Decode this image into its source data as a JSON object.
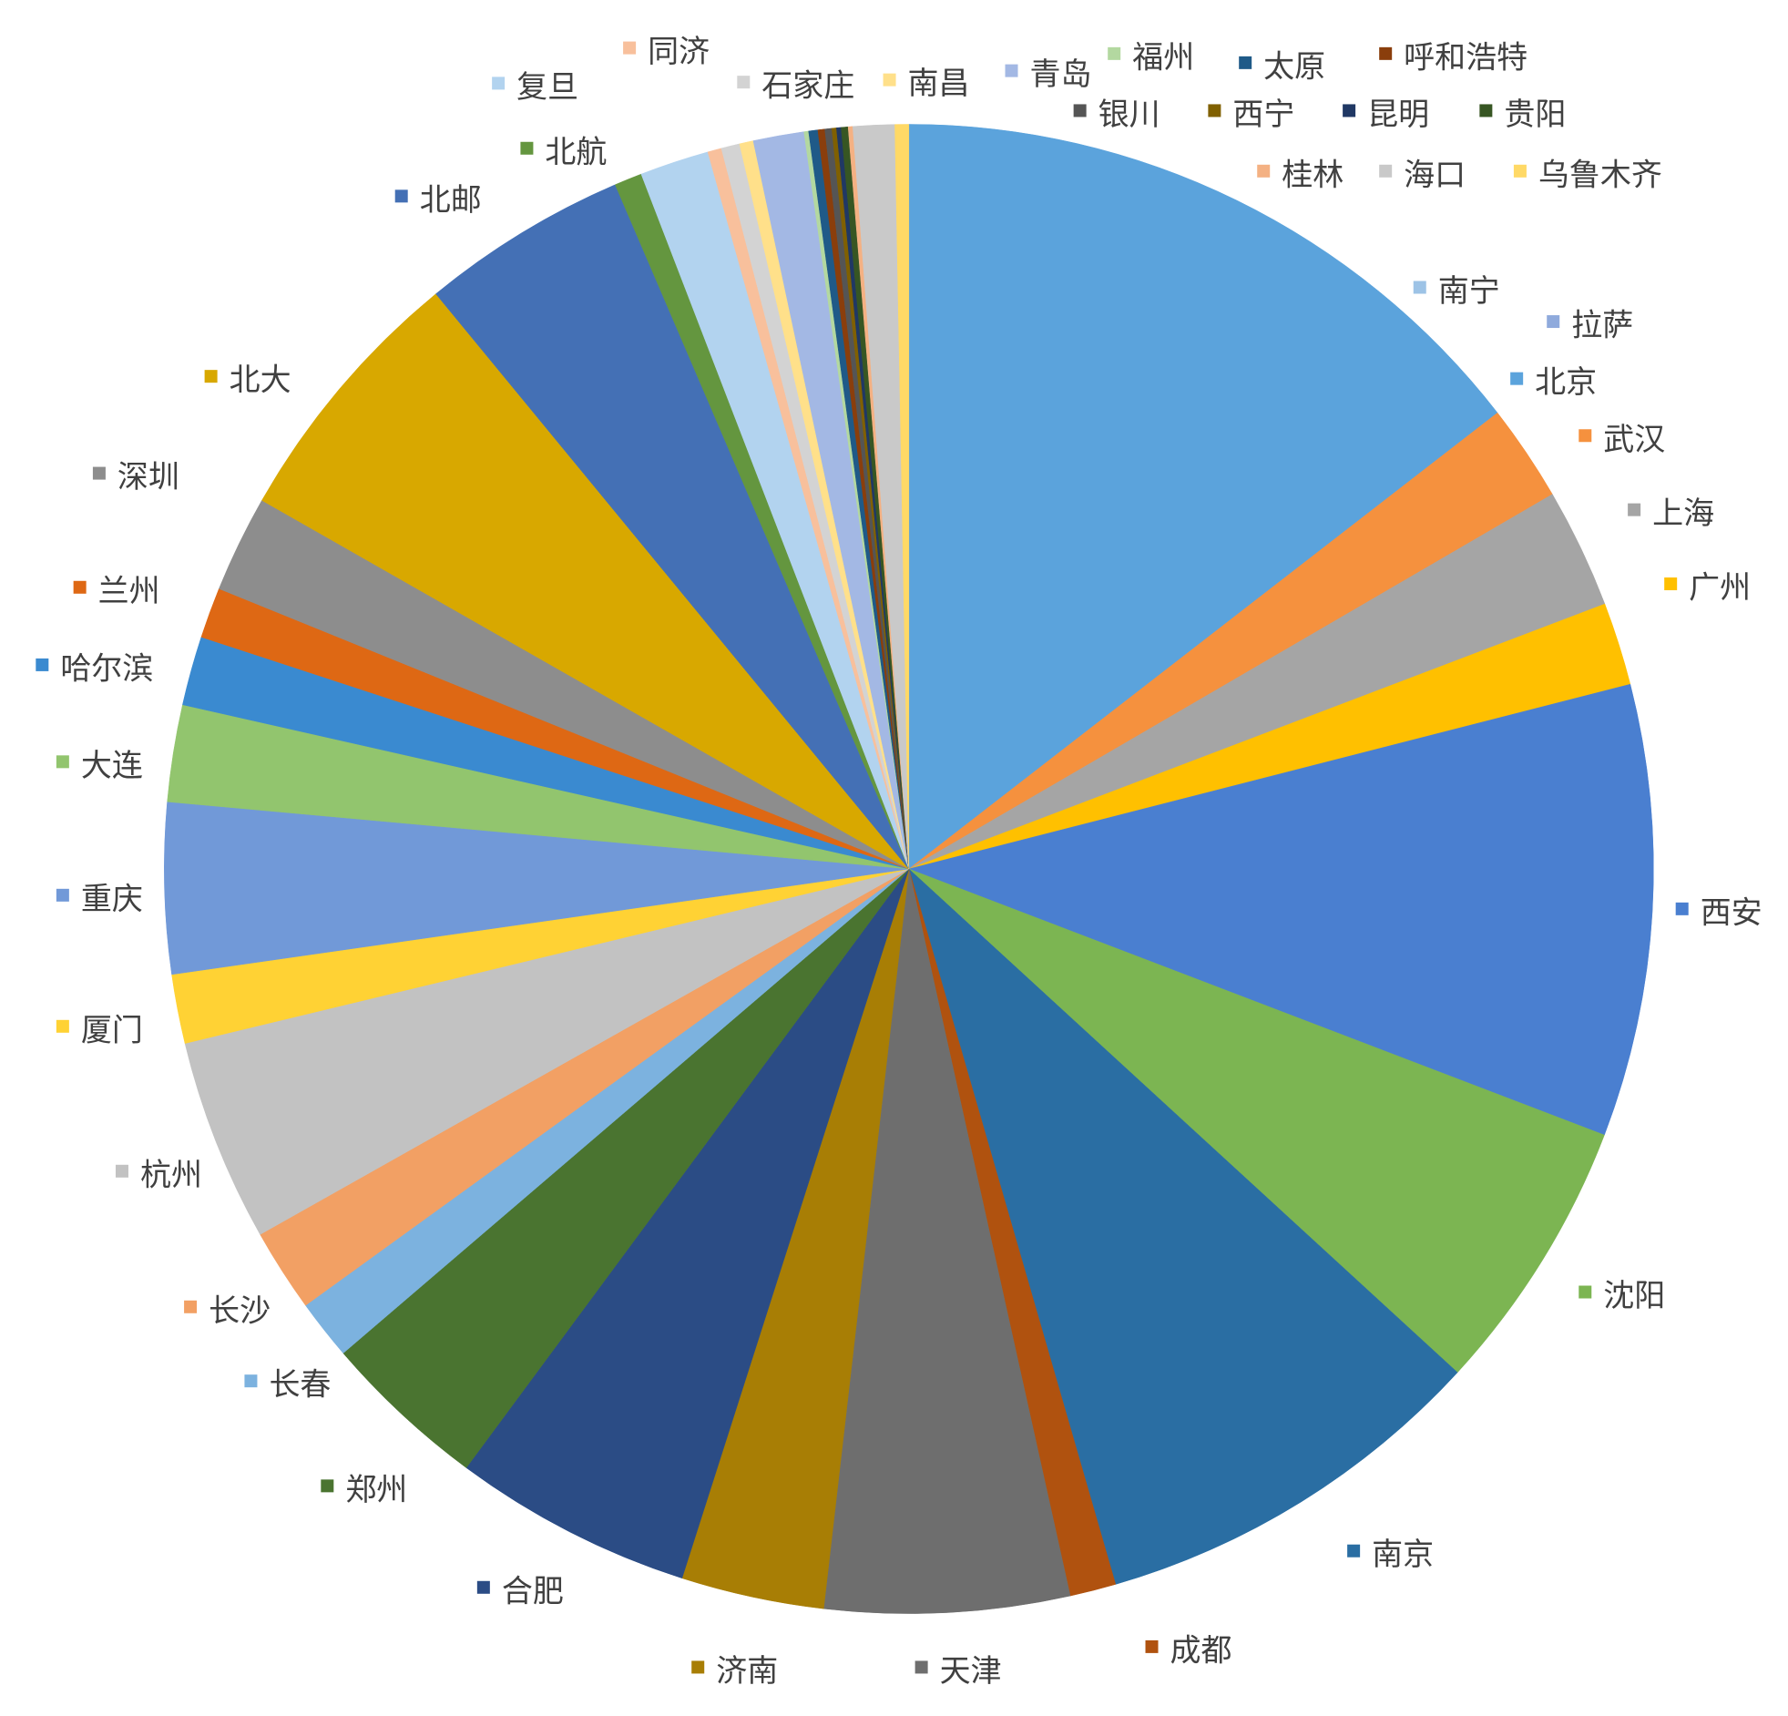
{
  "chart_data": {
    "type": "pie",
    "categories": [
      "南宁",
      "拉萨",
      "北京",
      "武汉",
      "上海",
      "广州",
      "西安",
      "沈阳",
      "南京",
      "成都",
      "天津",
      "济南",
      "合肥",
      "郑州",
      "长春",
      "长沙",
      "杭州",
      "厦门",
      "重庆",
      "大连",
      "哈尔滨",
      "兰州",
      "深圳",
      "北大",
      "北邮",
      "北航",
      "复旦",
      "同济",
      "石家庄",
      "南昌",
      "青岛",
      "福州",
      "太原",
      "呼和浩特",
      "银川",
      "西宁",
      "昆明",
      "贵阳",
      "桂林",
      "海口",
      "乌鲁木齐"
    ],
    "values": [
      0,
      0,
      14.5,
      2.1,
      2.6,
      1.8,
      9.8,
      6.0,
      8.7,
      1.0,
      5.3,
      3.1,
      5.2,
      3.6,
      1.3,
      1.8,
      4.4,
      1.5,
      3.7,
      2.1,
      1.5,
      1.1,
      2.1,
      5.8,
      4.5,
      0.6,
      1.5,
      0.3,
      0.4,
      0.3,
      1.1,
      0.1,
      0.2,
      0.15,
      0.15,
      0.1,
      0.1,
      0.15,
      0.1,
      0.9,
      0.3
    ],
    "colors": [
      "#9dc3e6",
      "#8faadc",
      "#5ba3dc",
      "#f5913e",
      "#a5a5a5",
      "#ffc000",
      "#4a7fd0",
      "#7cb552",
      "#2a6ea3",
      "#b0520f",
      "#6e6e6e",
      "#a87e05",
      "#2b4c85",
      "#4a7430",
      "#7cb2df",
      "#f2a064",
      "#c2c2c2",
      "#ffd234",
      "#7199d8",
      "#92c56e",
      "#3a8ad0",
      "#de6814",
      "#8d8d8d",
      "#d8a800",
      "#4470b5",
      "#64963f",
      "#b2d3ef",
      "#f8c09c",
      "#d3d3d3",
      "#ffe08a",
      "#a3b8e4",
      "#b3d8a0",
      "#1f5a88",
      "#8a3e0c",
      "#555555",
      "#806000",
      "#203864",
      "#375623",
      "#f4b183",
      "#c9c9c9",
      "#ffd966"
    ]
  }
}
